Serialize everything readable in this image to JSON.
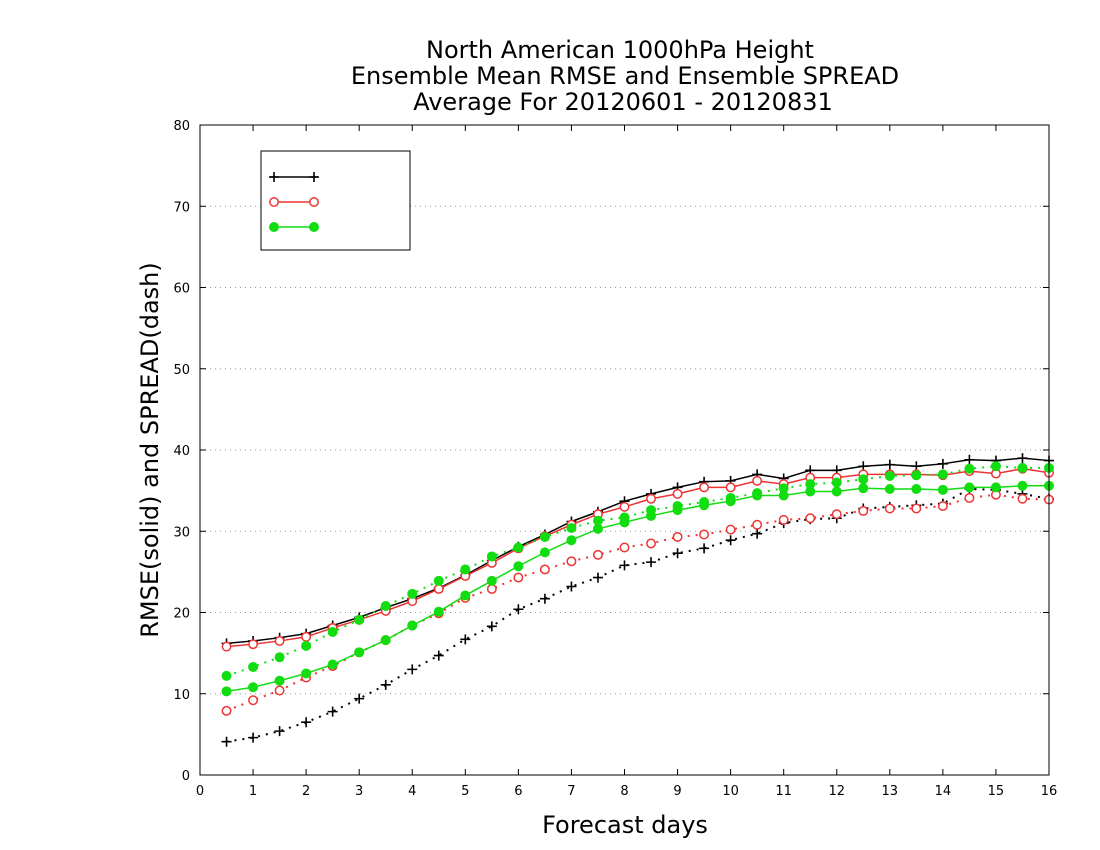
{
  "chart_data": {
    "type": "line",
    "title": [
      "North American 1000hPa Height",
      "Ensemble Mean RMSE and Ensemble SPREAD",
      "Average For 20120601 - 20120831"
    ],
    "xlabel": "Forecast days",
    "ylabel": "RMSE(solid) and SPREAD(dash)",
    "xlim": [
      0,
      16
    ],
    "ylim": [
      0,
      80
    ],
    "xticks": [
      "0",
      "1",
      "2",
      "3",
      "4",
      "5",
      "6",
      "7",
      "8",
      "9",
      "10",
      "11",
      "12",
      "13",
      "14",
      "15",
      "16"
    ],
    "yticks": [
      "0",
      "10",
      "20",
      "30",
      "40",
      "50",
      "60",
      "70",
      "80"
    ],
    "grid": "horizontal dotted",
    "legend_position": "top-left",
    "x": [
      0.5,
      1,
      1.5,
      2,
      2.5,
      3,
      3.5,
      4,
      4.5,
      5,
      5.5,
      6,
      6.5,
      7,
      7.5,
      8,
      8.5,
      9,
      9.5,
      10,
      10.5,
      11,
      11.5,
      12,
      12.5,
      13,
      13.5,
      14,
      14.5,
      15,
      15.5,
      16
    ],
    "series": [
      {
        "name": "",
        "color": "#000000",
        "marker": "plus",
        "rmse": [
          16.2,
          16.5,
          16.9,
          17.4,
          18.4,
          19.4,
          20.6,
          21.7,
          23.0,
          24.6,
          26.4,
          28.1,
          29.6,
          31.2,
          32.4,
          33.7,
          34.6,
          35.4,
          36.1,
          36.2,
          37.0,
          36.5,
          37.5,
          37.5,
          38.0,
          38.2,
          38.0,
          38.3,
          38.8,
          38.7,
          39.0,
          38.7
        ],
        "spread": [
          4.1,
          4.6,
          5.4,
          6.5,
          7.8,
          9.4,
          11.1,
          13.0,
          14.7,
          16.7,
          18.3,
          20.4,
          21.7,
          23.2,
          24.3,
          25.8,
          26.2,
          27.3,
          27.9,
          28.9,
          29.7,
          31.0,
          31.5,
          31.6,
          32.8,
          33.0,
          33.2,
          33.4,
          35.2,
          35.1,
          34.6,
          34.0
        ]
      },
      {
        "name": "",
        "color": "#ee3333",
        "marker": "open-circle",
        "rmse": [
          15.8,
          16.1,
          16.5,
          17.0,
          18.1,
          19.1,
          20.2,
          21.4,
          22.9,
          24.5,
          26.1,
          27.9,
          29.4,
          30.8,
          32.1,
          33.0,
          34.0,
          34.6,
          35.4,
          35.4,
          36.2,
          35.8,
          36.6,
          36.6,
          37.0,
          37.0,
          37.0,
          36.9,
          37.4,
          37.1,
          37.7,
          37.2
        ],
        "spread": [
          7.9,
          9.2,
          10.4,
          12.0,
          13.4,
          15.1,
          16.6,
          18.4,
          19.9,
          21.8,
          22.9,
          24.3,
          25.3,
          26.3,
          27.1,
          28.0,
          28.5,
          29.3,
          29.6,
          30.2,
          30.8,
          31.4,
          31.6,
          32.1,
          32.5,
          32.8,
          32.8,
          33.1,
          34.1,
          34.5,
          34.0,
          33.9
        ]
      },
      {
        "name": "",
        "color": "#11dd11",
        "marker": "filled-circle",
        "rmse": [
          10.3,
          10.8,
          11.6,
          12.5,
          13.6,
          15.1,
          16.6,
          18.4,
          20.1,
          22.1,
          23.9,
          25.7,
          27.4,
          28.9,
          30.3,
          31.1,
          31.9,
          32.6,
          33.2,
          33.7,
          34.4,
          34.4,
          34.9,
          34.9,
          35.3,
          35.2,
          35.2,
          35.1,
          35.4,
          35.4,
          35.6,
          35.6
        ],
        "spread": [
          12.2,
          13.3,
          14.5,
          15.9,
          17.6,
          19.1,
          20.8,
          22.3,
          23.9,
          25.3,
          26.9,
          28.0,
          29.3,
          30.4,
          31.3,
          31.7,
          32.6,
          33.1,
          33.6,
          34.1,
          34.7,
          35.3,
          35.8,
          36.0,
          36.4,
          36.8,
          36.9,
          37.0,
          37.7,
          38.0,
          37.8,
          37.8
        ]
      }
    ]
  }
}
